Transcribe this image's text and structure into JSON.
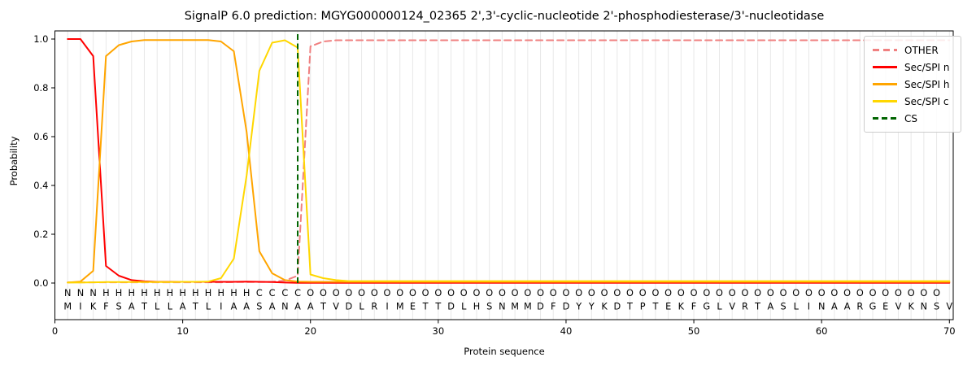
{
  "chart_data": {
    "type": "line",
    "title": "SignalP 6.0 prediction: MGYG000000124_02365 2',3'-cyclic-nucleotide 2'-phosphodiesterase/3'-nucleotidase",
    "xlabel": "Protein sequence",
    "ylabel": "Probability",
    "x_ticks": [
      0,
      10,
      20,
      30,
      40,
      50,
      60,
      70
    ],
    "y_ticks": [
      "0.0",
      "0.2",
      "0.4",
      "0.6",
      "0.8",
      "1.0"
    ],
    "xlim": [
      0,
      70.3
    ],
    "ylim": [
      -0.15,
      1.033
    ],
    "grid": "vertical-per-residue",
    "grid_color": "#e8e8e8",
    "legend_position": "upper right",
    "sequence": "MIKFSATLLATLIAASANAATVDLRIMETTDLHSNMMDFDYYKDTPTEKFGLVRTASLINAARGEVKNSV",
    "region_labels": "NNNHHHHHHHHHHHHCCCCOOOOOOOOOOOOOOOOOOOOOOOOOOOOOOOOOOOOOOOOOOOOOOOOOO",
    "region_colors": {
      "N": "#ff0000",
      "H": "#ffa500",
      "C": "#ffd700",
      "O": "#808080"
    },
    "sequence_color": "#1a1a1a",
    "cs_position": 19,
    "series": [
      {
        "id": "other",
        "name": "OTHER",
        "color": "#f08080",
        "style": "dashed",
        "values": [
          0.003,
          0.003,
          0.003,
          0.003,
          0.003,
          0.003,
          0.003,
          0.003,
          0.003,
          0.003,
          0.003,
          0.003,
          0.003,
          0.004,
          0.004,
          0.004,
          0.005,
          0.01,
          0.03,
          0.97,
          0.99,
          0.995,
          0.995,
          0.995,
          0.995,
          0.995,
          0.995,
          0.995,
          0.995,
          0.995,
          0.995,
          0.995,
          0.995,
          0.995,
          0.995,
          0.995,
          0.995,
          0.995,
          0.995,
          0.995,
          0.995,
          0.995,
          0.995,
          0.995,
          0.995,
          0.995,
          0.995,
          0.995,
          0.995,
          0.995,
          0.995,
          0.995,
          0.995,
          0.995,
          0.995,
          0.995,
          0.995,
          0.995,
          0.995,
          0.995,
          0.995,
          0.995,
          0.995,
          0.995,
          0.995,
          0.995,
          0.995,
          0.995,
          0.995,
          0.995
        ]
      },
      {
        "id": "n",
        "name": "Sec/SPI n",
        "color": "#ff0000",
        "style": "solid",
        "values": [
          1.0,
          1.0,
          0.93,
          0.07,
          0.03,
          0.012,
          0.007,
          0.005,
          0.005,
          0.005,
          0.005,
          0.005,
          0.005,
          0.005,
          0.006,
          0.005,
          0.004,
          0.002,
          0.001,
          0.001,
          0.001,
          0.001,
          0.001,
          0.001,
          0.001,
          0.001,
          0.001,
          0.001,
          0.001,
          0.001,
          0.001,
          0.001,
          0.001,
          0.001,
          0.001,
          0.001,
          0.001,
          0.001,
          0.001,
          0.001,
          0.001,
          0.001,
          0.001,
          0.001,
          0.001,
          0.001,
          0.001,
          0.001,
          0.001,
          0.001,
          0.001,
          0.001,
          0.001,
          0.001,
          0.001,
          0.001,
          0.001,
          0.001,
          0.001,
          0.001,
          0.001,
          0.001,
          0.001,
          0.001,
          0.001,
          0.001,
          0.001,
          0.001,
          0.001,
          0.001
        ]
      },
      {
        "id": "h",
        "name": "Sec/SPI h",
        "color": "#ffa500",
        "style": "solid",
        "values": [
          0.002,
          0.006,
          0.05,
          0.93,
          0.975,
          0.99,
          0.996,
          0.996,
          0.996,
          0.996,
          0.996,
          0.996,
          0.99,
          0.95,
          0.62,
          0.13,
          0.04,
          0.012,
          0.006,
          0.005,
          0.005,
          0.005,
          0.005,
          0.005,
          0.005,
          0.005,
          0.005,
          0.005,
          0.005,
          0.005,
          0.005,
          0.005,
          0.005,
          0.005,
          0.005,
          0.005,
          0.005,
          0.005,
          0.005,
          0.005,
          0.005,
          0.005,
          0.005,
          0.005,
          0.005,
          0.005,
          0.005,
          0.005,
          0.005,
          0.005,
          0.005,
          0.005,
          0.005,
          0.005,
          0.005,
          0.005,
          0.005,
          0.005,
          0.005,
          0.005,
          0.005,
          0.005,
          0.005,
          0.005,
          0.005,
          0.005,
          0.005,
          0.005,
          0.005,
          0.005
        ]
      },
      {
        "id": "c",
        "name": "Sec/SPI c",
        "color": "#ffd700",
        "style": "solid",
        "values": [
          0.002,
          0.002,
          0.003,
          0.004,
          0.004,
          0.004,
          0.004,
          0.004,
          0.004,
          0.005,
          0.005,
          0.006,
          0.02,
          0.1,
          0.44,
          0.87,
          0.985,
          0.995,
          0.965,
          0.035,
          0.02,
          0.012,
          0.008,
          0.008,
          0.008,
          0.008,
          0.008,
          0.008,
          0.008,
          0.008,
          0.008,
          0.008,
          0.008,
          0.008,
          0.008,
          0.008,
          0.008,
          0.008,
          0.008,
          0.008,
          0.008,
          0.008,
          0.008,
          0.008,
          0.008,
          0.008,
          0.008,
          0.008,
          0.008,
          0.008,
          0.008,
          0.008,
          0.008,
          0.008,
          0.008,
          0.008,
          0.008,
          0.008,
          0.008,
          0.008,
          0.008,
          0.008,
          0.008,
          0.008,
          0.008,
          0.008,
          0.008,
          0.008,
          0.008,
          0.008
        ]
      },
      {
        "id": "cs",
        "name": "CS",
        "color": "#006400",
        "style": "dashed",
        "type": "vline",
        "position": 19
      }
    ]
  }
}
